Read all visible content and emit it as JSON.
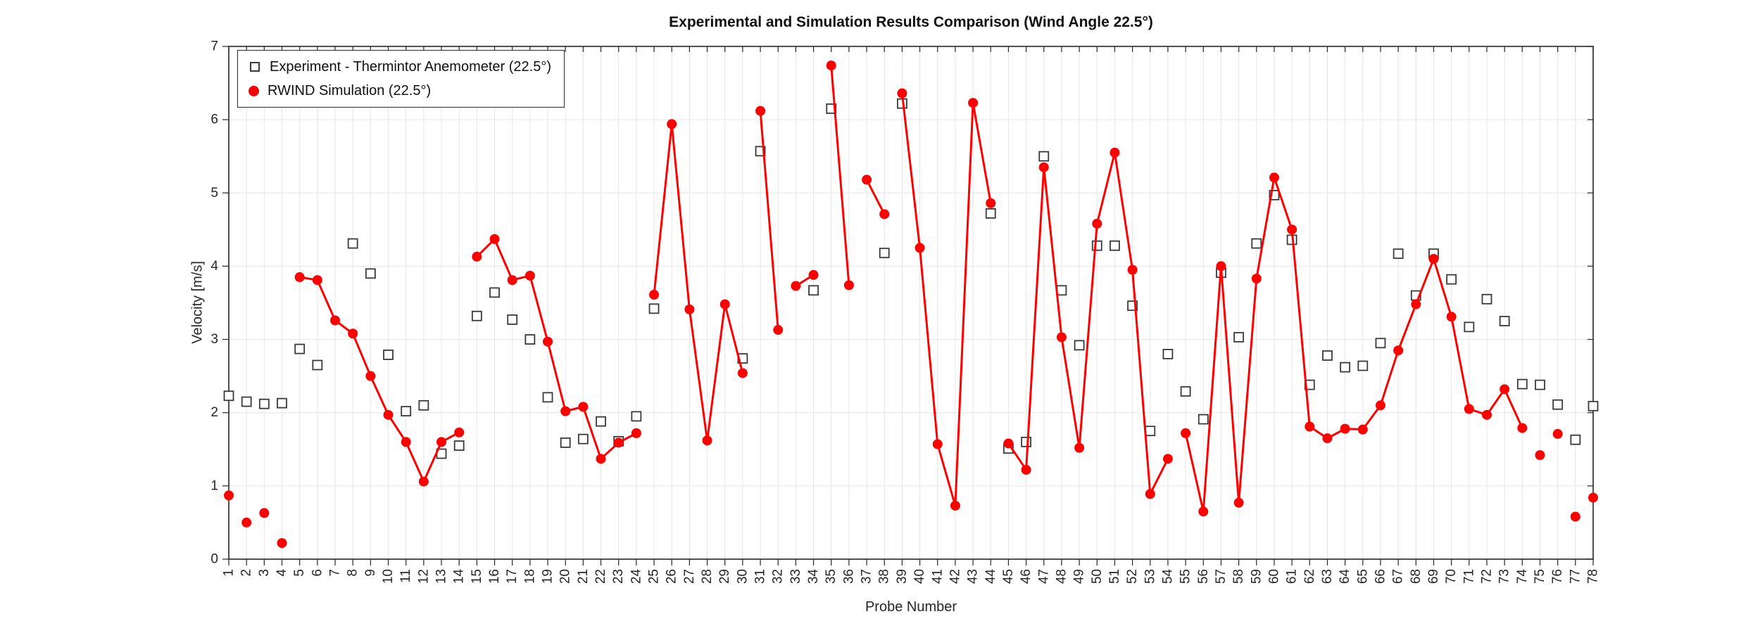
{
  "figure": {
    "title": "Experimental and Simulation Results Comparison (Wind Angle 22.5°)",
    "xlabel": "Probe Number",
    "ylabel": "Velocity [m/s]"
  },
  "legend": {
    "items": [
      {
        "label": "Experiment - Thermintor Anemometer (22.5°)",
        "marker": "open-square",
        "color": "#3a3a3a"
      },
      {
        "label": "RWIND Simulation (22.5°)",
        "marker": "filled-circle",
        "color": "#ff0000"
      }
    ]
  },
  "colors": {
    "background": "#ffffff",
    "grid": "#e6e6e6",
    "axis": "#262626",
    "simulation": "#ff0000",
    "experiment_edge": "#3a3a3a"
  },
  "chart_data": {
    "type": "line",
    "title": "Experimental and Simulation Results Comparison (Wind Angle 22.5°)",
    "xlabel": "Probe Number",
    "ylabel": "Velocity [m/s]",
    "ylim": [
      0,
      7
    ],
    "yticks": [
      0,
      1,
      2,
      3,
      4,
      5,
      6,
      7
    ],
    "grid": true,
    "legend_position": "top-left",
    "x": [
      1,
      2,
      3,
      4,
      5,
      6,
      7,
      8,
      9,
      10,
      11,
      12,
      13,
      14,
      15,
      16,
      17,
      18,
      19,
      20,
      21,
      22,
      23,
      24,
      25,
      26,
      27,
      28,
      29,
      30,
      31,
      32,
      33,
      34,
      35,
      36,
      37,
      38,
      39,
      40,
      41,
      42,
      43,
      44,
      45,
      46,
      47,
      48,
      49,
      50,
      51,
      52,
      53,
      54,
      55,
      56,
      57,
      58,
      59,
      60,
      61,
      62,
      63,
      64,
      65,
      66,
      67,
      68,
      69,
      70,
      71,
      72,
      73,
      74,
      75,
      76,
      77,
      78
    ],
    "series": [
      {
        "name": "Experiment - Thermintor Anemometer (22.5°)",
        "style": "scatter",
        "marker": "open-square",
        "color": "#3a3a3a",
        "values": [
          2.23,
          2.15,
          2.12,
          2.13,
          2.87,
          2.65,
          null,
          4.31,
          3.9,
          2.79,
          2.02,
          2.1,
          1.44,
          1.55,
          3.32,
          3.64,
          3.27,
          3.0,
          2.21,
          1.59,
          1.64,
          1.88,
          1.61,
          1.95,
          3.42,
          null,
          null,
          null,
          null,
          2.74,
          5.57,
          null,
          null,
          3.67,
          6.15,
          null,
          null,
          4.18,
          6.22,
          null,
          null,
          null,
          null,
          4.72,
          1.51,
          1.6,
          5.5,
          3.67,
          2.92,
          4.28,
          4.28,
          3.46,
          1.75,
          2.8,
          2.29,
          1.91,
          3.91,
          3.03,
          4.31,
          4.97,
          4.36,
          2.38,
          2.78,
          2.62,
          2.64,
          2.95,
          4.17,
          3.6,
          4.17,
          3.82,
          3.17,
          3.55,
          3.25,
          2.39,
          2.38,
          2.11,
          1.63,
          2.09
        ]
      },
      {
        "name": "RWIND Simulation (22.5°)",
        "style": "line-with-markers",
        "marker": "filled-circle",
        "color": "#ff0000",
        "values": [
          0.87,
          0.5,
          0.63,
          0.22,
          3.85,
          3.81,
          3.26,
          3.08,
          2.5,
          1.97,
          1.6,
          1.06,
          1.6,
          1.73,
          4.13,
          4.37,
          3.81,
          3.87,
          2.97,
          2.02,
          2.08,
          1.37,
          1.59,
          1.72,
          3.61,
          5.94,
          3.41,
          1.62,
          3.48,
          2.54,
          6.12,
          3.13,
          3.73,
          3.88,
          6.74,
          3.74,
          5.18,
          4.71,
          6.36,
          4.25,
          1.57,
          0.73,
          6.23,
          4.86,
          1.58,
          1.22,
          5.35,
          3.03,
          1.52,
          4.58,
          5.55,
          3.95,
          0.89,
          1.37,
          1.72,
          0.65,
          4.0,
          0.77,
          3.83,
          5.21,
          4.5,
          1.81,
          1.65,
          1.78,
          1.77,
          2.1,
          2.85,
          3.48,
          4.1,
          3.31,
          2.05,
          1.97,
          2.32,
          1.79,
          1.42,
          1.71,
          0.58,
          0.84
        ],
        "connected_runs": [
          [
            5,
            14
          ],
          [
            15,
            24
          ],
          [
            25,
            30
          ],
          [
            31,
            32
          ],
          [
            33,
            34
          ],
          [
            35,
            36
          ],
          [
            37,
            38
          ],
          [
            39,
            44
          ],
          [
            45,
            54
          ],
          [
            55,
            74
          ]
        ]
      }
    ]
  }
}
